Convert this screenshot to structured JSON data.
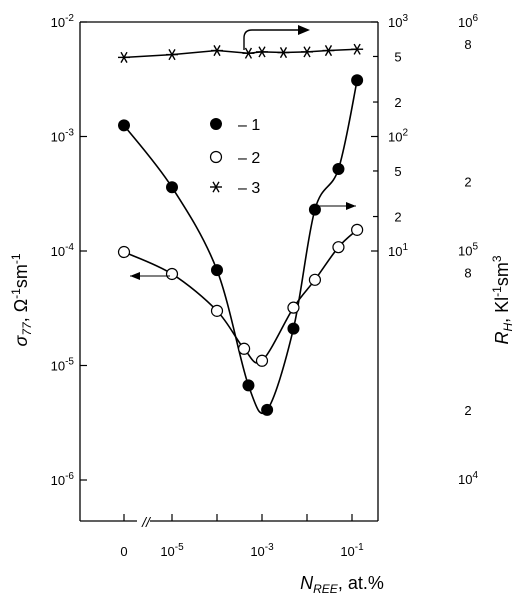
{
  "chart_data": {
    "type": "scatter",
    "title": "",
    "xlabel": {
      "main": "N",
      "sub": "REE",
      "suffix": ", at.%"
    },
    "ylabel_left": {
      "main": "σ",
      "sub": "77",
      "unit_pre": ", Ω",
      "unit_exp1": "-1",
      "unit_mid": "sm",
      "unit_exp2": "-1"
    },
    "ylabel_right": {
      "main": "R",
      "sub": "H",
      "unit_pre": ", Kl",
      "unit_exp1": "-1",
      "unit_mid": "sm",
      "unit_exp2": "3"
    },
    "x_axis": {
      "scale": "log",
      "break_mark": "//",
      "ticks": [
        {
          "value": 0,
          "base": "0",
          "exp": ""
        },
        {
          "value": 1e-05,
          "base": "10",
          "exp": "-5"
        },
        {
          "value": 0.0001,
          "base": "",
          "exp": ""
        },
        {
          "value": 0.001,
          "base": "10",
          "exp": "-3"
        },
        {
          "value": 0.01,
          "base": "",
          "exp": ""
        },
        {
          "value": 0.1,
          "base": "10",
          "exp": "-1"
        }
      ]
    },
    "y_axis_left": {
      "scale": "log",
      "ylim": [
        1e-07,
        0.01
      ],
      "ticks": [
        {
          "value": 0.01,
          "base": "10",
          "exp": "-2"
        },
        {
          "value": 0.001,
          "base": "10",
          "exp": "-3"
        },
        {
          "value": 0.0001,
          "base": "10",
          "exp": "-4"
        },
        {
          "value": 1e-05,
          "base": "10",
          "exp": "-5"
        },
        {
          "value": 1e-06,
          "base": "10",
          "exp": "-6"
        }
      ]
    },
    "y_axis_right_inner": {
      "scale": "log",
      "ylim": [
        1,
        1000
      ],
      "ticks": [
        {
          "value": 1000,
          "base": "10",
          "exp": "3"
        },
        {
          "value": 500,
          "base": "5",
          "exp": ""
        },
        {
          "value": 200,
          "base": "2",
          "exp": ""
        },
        {
          "value": 100,
          "base": "10",
          "exp": "2"
        },
        {
          "value": 50,
          "base": "5",
          "exp": ""
        },
        {
          "value": 20,
          "base": "2",
          "exp": ""
        },
        {
          "value": 10,
          "base": "10",
          "exp": "1"
        }
      ]
    },
    "y_axis_right_outer": {
      "scale": "log",
      "ticks": [
        {
          "value": 1000000,
          "base": "10",
          "exp": "6"
        },
        {
          "value": 800000,
          "base": "8",
          "exp": ""
        },
        {
          "value": 200000,
          "base": "2",
          "exp": ""
        },
        {
          "value": 100000,
          "base": "10",
          "exp": "5"
        },
        {
          "value": 80000,
          "base": "8",
          "exp": ""
        },
        {
          "value": 20000,
          "base": "2",
          "exp": ""
        },
        {
          "value": 10000,
          "base": "10",
          "exp": "4"
        }
      ]
    },
    "legend": {
      "placement": "upper-center",
      "entries": [
        {
          "label": "– 1",
          "marker": "filled-circle"
        },
        {
          "label": "– 2",
          "marker": "open-circle"
        },
        {
          "label": "– 3",
          "marker": "asterisk"
        }
      ]
    },
    "series": [
      {
        "id": "1",
        "marker": "filled-circle",
        "axis": "left",
        "points": [
          {
            "x": 0,
            "y": 0.00125
          },
          {
            "x": 1e-05,
            "y": 0.00036
          },
          {
            "x": 0.0001,
            "y": 6.8e-05
          },
          {
            "x": 0.0005,
            "y": 6.7e-06
          },
          {
            "x": 0.0013,
            "y": 4.1e-06
          },
          {
            "x": 0.005,
            "y": 2.1e-05
          },
          {
            "x": 0.015,
            "y": 0.00023
          },
          {
            "x": 0.05,
            "y": 0.00052
          },
          {
            "x": 0.13,
            "y": 0.0031
          }
        ]
      },
      {
        "id": "2",
        "marker": "open-circle",
        "axis": "left",
        "points": [
          {
            "x": 0,
            "y": 9.8e-05
          },
          {
            "x": 1e-05,
            "y": 6.3e-05
          },
          {
            "x": 0.0001,
            "y": 3e-05
          },
          {
            "x": 0.0004,
            "y": 1.4e-05
          },
          {
            "x": 0.001,
            "y": 1.1e-05
          },
          {
            "x": 0.005,
            "y": 3.2e-05
          },
          {
            "x": 0.015,
            "y": 5.6e-05
          },
          {
            "x": 0.05,
            "y": 0.000108
          },
          {
            "x": 0.13,
            "y": 0.000153
          }
        ]
      },
      {
        "id": "3",
        "marker": "asterisk",
        "axis": "right-outer",
        "points": [
          {
            "x": 0,
            "y": 700000
          },
          {
            "x": 1e-05,
            "y": 720000
          },
          {
            "x": 0.0001,
            "y": 750000
          },
          {
            "x": 0.0005,
            "y": 730000
          },
          {
            "x": 0.001,
            "y": 740000
          },
          {
            "x": 0.003,
            "y": 735000
          },
          {
            "x": 0.01,
            "y": 740000
          },
          {
            "x": 0.03,
            "y": 750000
          },
          {
            "x": 0.13,
            "y": 760000
          }
        ]
      }
    ]
  }
}
